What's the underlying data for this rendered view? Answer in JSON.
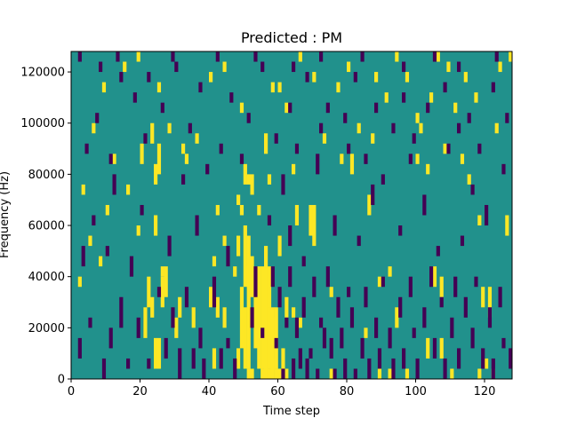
{
  "chart_data": {
    "type": "heatmap",
    "title": "Predicted : PM",
    "xlabel": "Time step",
    "ylabel": "Frequency (Hz)",
    "xlim": [
      0,
      128
    ],
    "ylim": [
      0,
      128000
    ],
    "x_ticks": [
      {
        "value": 0,
        "label": "0"
      },
      {
        "value": 20,
        "label": "20"
      },
      {
        "value": 40,
        "label": "40"
      },
      {
        "value": 60,
        "label": "60"
      },
      {
        "value": 80,
        "label": "80"
      },
      {
        "value": 100,
        "label": "100"
      },
      {
        "value": 120,
        "label": "120"
      }
    ],
    "y_ticks": [
      {
        "value": 0,
        "label": "0"
      },
      {
        "value": 20000,
        "label": "20000"
      },
      {
        "value": 40000,
        "label": "40000"
      },
      {
        "value": 60000,
        "label": "60000"
      },
      {
        "value": 80000,
        "label": "80000"
      },
      {
        "value": 100000,
        "label": "100000"
      },
      {
        "value": 120000,
        "label": "120000"
      }
    ],
    "grid": false,
    "colormap": "viridis",
    "colors": {
      "low": "#440154",
      "mid": "#21918c",
      "high": "#fde725"
    },
    "background_value": 0,
    "bin_height_hz": 4000,
    "cells_high": [
      [
        51,
        0,
        1
      ],
      [
        52,
        0,
        1
      ],
      [
        55,
        0,
        1
      ],
      [
        56,
        0,
        2
      ],
      [
        57,
        0,
        1
      ],
      [
        58,
        0,
        2
      ],
      [
        59,
        0,
        1
      ],
      [
        60,
        0,
        1
      ],
      [
        62,
        0,
        1
      ],
      [
        75,
        0,
        1
      ],
      [
        89,
        0,
        1
      ],
      [
        92,
        0,
        1
      ],
      [
        97,
        0,
        1
      ],
      [
        110,
        0,
        1
      ],
      [
        118,
        0,
        1
      ],
      [
        122,
        0,
        1
      ],
      [
        24,
        1,
        3
      ],
      [
        25,
        1,
        3
      ],
      [
        41,
        1,
        2
      ],
      [
        48,
        1,
        2
      ],
      [
        50,
        1,
        6
      ],
      [
        51,
        1,
        10
      ],
      [
        54,
        1,
        10
      ],
      [
        55,
        1,
        10
      ],
      [
        56,
        1,
        12
      ],
      [
        57,
        1,
        10
      ],
      [
        58,
        1,
        6
      ],
      [
        59,
        1,
        6
      ],
      [
        61,
        1,
        2
      ],
      [
        103,
        2,
        2
      ],
      [
        107,
        2,
        2
      ],
      [
        120,
        1,
        1
      ],
      [
        21,
        4,
        3
      ],
      [
        30,
        4,
        2
      ],
      [
        49,
        3,
        6
      ],
      [
        50,
        9,
        6
      ],
      [
        51,
        9,
        5
      ],
      [
        52,
        8,
        4
      ],
      [
        53,
        3,
        6
      ],
      [
        23,
        6,
        2
      ],
      [
        22,
        7,
        3
      ],
      [
        26,
        7,
        3
      ],
      [
        27,
        8,
        3
      ],
      [
        31,
        6,
        2
      ],
      [
        35,
        5,
        2
      ],
      [
        40,
        7,
        2
      ],
      [
        42,
        6,
        2
      ],
      [
        44,
        5,
        2
      ],
      [
        48,
        12,
        2
      ],
      [
        50,
        19,
        2
      ],
      [
        51,
        19,
        1
      ],
      [
        57,
        7,
        3
      ],
      [
        58,
        4,
        2
      ],
      [
        62,
        6,
        2
      ],
      [
        64,
        6,
        1
      ],
      [
        66,
        5,
        1
      ],
      [
        75,
        8,
        1
      ],
      [
        85,
        4,
        1
      ],
      [
        94,
        5,
        2
      ],
      [
        105,
        9,
        2
      ],
      [
        107,
        8,
        2
      ],
      [
        119,
        7,
        2
      ],
      [
        121,
        6,
        1
      ],
      [
        20,
        21,
        2
      ],
      [
        23,
        23,
        2
      ],
      [
        25,
        20,
        3
      ],
      [
        24,
        14,
        2
      ],
      [
        26,
        10,
        1
      ],
      [
        33,
        21,
        1
      ],
      [
        41,
        11,
        1
      ],
      [
        44,
        13,
        1
      ],
      [
        47,
        10,
        1
      ],
      [
        49,
        16,
        1
      ],
      [
        52,
        18,
        2
      ],
      [
        56,
        22,
        2
      ],
      [
        60,
        12,
        2
      ],
      [
        65,
        15,
        2
      ],
      [
        69,
        14,
        3
      ],
      [
        70,
        13,
        4
      ],
      [
        81,
        20,
        2
      ],
      [
        86,
        16,
        2
      ],
      [
        89,
        9,
        1
      ],
      [
        92,
        10,
        1
      ],
      [
        100,
        21,
        1
      ],
      [
        108,
        22,
        1
      ],
      [
        113,
        21,
        1
      ],
      [
        118,
        15,
        1
      ],
      [
        121,
        7,
        2
      ],
      [
        126,
        14,
        2
      ],
      [
        5,
        13,
        1
      ],
      [
        8,
        11,
        1
      ],
      [
        2,
        9,
        1
      ],
      [
        10,
        16,
        1
      ],
      [
        12,
        21,
        1
      ],
      [
        16,
        18,
        1
      ],
      [
        19,
        14,
        1
      ],
      [
        24,
        19,
        2
      ],
      [
        28,
        24,
        1
      ],
      [
        32,
        22,
        1
      ],
      [
        42,
        16,
        1
      ],
      [
        48,
        17,
        1
      ],
      [
        54,
        16,
        1
      ],
      [
        57,
        19,
        1
      ],
      [
        64,
        20,
        1
      ],
      [
        73,
        23,
        1
      ],
      [
        78,
        21,
        1
      ],
      [
        83,
        24,
        1
      ],
      [
        87,
        23,
        1
      ],
      [
        91,
        27,
        1
      ],
      [
        97,
        29,
        1
      ],
      [
        100,
        25,
        1
      ],
      [
        103,
        20,
        1
      ],
      [
        106,
        31,
        1
      ],
      [
        111,
        26,
        1
      ],
      [
        115,
        19,
        1
      ],
      [
        123,
        24,
        1
      ],
      [
        3,
        18,
        1
      ],
      [
        6,
        24,
        1
      ],
      [
        9,
        28,
        1
      ],
      [
        15,
        30,
        1
      ],
      [
        19,
        31,
        1
      ],
      [
        25,
        28,
        1
      ],
      [
        36,
        23,
        1
      ],
      [
        40,
        29,
        1
      ],
      [
        44,
        30,
        1
      ],
      [
        49,
        26,
        1
      ],
      [
        58,
        28,
        1
      ],
      [
        60,
        28,
        1
      ],
      [
        62,
        26,
        1
      ],
      [
        66,
        31,
        1
      ],
      [
        70,
        29,
        1
      ],
      [
        77,
        28,
        1
      ],
      [
        80,
        30,
        1
      ],
      [
        88,
        29,
        1
      ],
      [
        94,
        31,
        1
      ],
      [
        101,
        24,
        1
      ],
      [
        104,
        27,
        1
      ],
      [
        109,
        30,
        1
      ],
      [
        114,
        29,
        1
      ],
      [
        117,
        27,
        1
      ],
      [
        124,
        30,
        1
      ],
      [
        127,
        31,
        1
      ]
    ],
    "cells_low": [
      [
        2,
        2,
        2
      ],
      [
        5,
        5,
        1
      ],
      [
        9,
        0,
        2
      ],
      [
        11,
        3,
        2
      ],
      [
        14,
        5,
        3
      ],
      [
        16,
        1,
        1
      ],
      [
        19,
        4,
        2
      ],
      [
        22,
        1,
        1
      ],
      [
        25,
        8,
        1
      ],
      [
        27,
        2,
        2
      ],
      [
        29,
        5,
        2
      ],
      [
        31,
        0,
        3
      ],
      [
        33,
        7,
        2
      ],
      [
        35,
        1,
        2
      ],
      [
        37,
        3,
        2
      ],
      [
        38,
        0,
        2
      ],
      [
        41,
        7,
        3
      ],
      [
        43,
        1,
        2
      ],
      [
        45,
        3,
        1
      ],
      [
        47,
        0,
        2
      ],
      [
        52,
        5,
        2
      ],
      [
        53,
        8,
        3
      ],
      [
        55,
        4,
        1
      ],
      [
        58,
        9,
        2
      ],
      [
        59,
        3,
        1
      ],
      [
        60,
        7,
        2
      ],
      [
        61,
        0,
        1
      ],
      [
        62,
        5,
        1
      ],
      [
        63,
        9,
        2
      ],
      [
        64,
        0,
        2
      ],
      [
        65,
        4,
        2
      ],
      [
        66,
        1,
        2
      ],
      [
        67,
        6,
        2
      ],
      [
        68,
        0,
        2
      ],
      [
        69,
        2,
        1
      ],
      [
        70,
        8,
        2
      ],
      [
        71,
        0,
        1
      ],
      [
        72,
        5,
        1
      ],
      [
        73,
        3,
        2
      ],
      [
        74,
        9,
        2
      ],
      [
        75,
        2,
        2
      ],
      [
        76,
        0,
        1
      ],
      [
        77,
        6,
        2
      ],
      [
        78,
        3,
        2
      ],
      [
        79,
        0,
        2
      ],
      [
        80,
        8,
        1
      ],
      [
        81,
        5,
        2
      ],
      [
        82,
        0,
        1
      ],
      [
        84,
        2,
        2
      ],
      [
        85,
        7,
        2
      ],
      [
        86,
        0,
        2
      ],
      [
        88,
        4,
        2
      ],
      [
        89,
        1,
        2
      ],
      [
        90,
        9,
        1
      ],
      [
        92,
        3,
        2
      ],
      [
        93,
        0,
        2
      ],
      [
        95,
        6,
        2
      ],
      [
        96,
        1,
        2
      ],
      [
        98,
        8,
        2
      ],
      [
        99,
        4,
        1
      ],
      [
        100,
        0,
        2
      ],
      [
        102,
        5,
        2
      ],
      [
        104,
        9,
        2
      ],
      [
        105,
        2,
        2
      ],
      [
        107,
        7,
        1
      ],
      [
        108,
        0,
        2
      ],
      [
        110,
        4,
        2
      ],
      [
        111,
        8,
        2
      ],
      [
        112,
        1,
        2
      ],
      [
        114,
        6,
        2
      ],
      [
        116,
        3,
        2
      ],
      [
        117,
        9,
        1
      ],
      [
        119,
        1,
        2
      ],
      [
        121,
        5,
        2
      ],
      [
        122,
        0,
        2
      ],
      [
        124,
        7,
        2
      ],
      [
        125,
        3,
        1
      ],
      [
        127,
        1,
        2
      ],
      [
        3,
        11,
        2
      ],
      [
        6,
        15,
        1
      ],
      [
        10,
        12,
        1
      ],
      [
        12,
        18,
        2
      ],
      [
        17,
        10,
        2
      ],
      [
        20,
        16,
        1
      ],
      [
        28,
        12,
        2
      ],
      [
        32,
        19,
        1
      ],
      [
        36,
        14,
        2
      ],
      [
        39,
        20,
        1
      ],
      [
        45,
        11,
        2
      ],
      [
        49,
        21,
        1
      ],
      [
        57,
        15,
        1
      ],
      [
        61,
        18,
        2
      ],
      [
        63,
        13,
        2
      ],
      [
        67,
        11,
        1
      ],
      [
        71,
        20,
        2
      ],
      [
        76,
        14,
        2
      ],
      [
        80,
        22,
        1
      ],
      [
        83,
        13,
        1
      ],
      [
        87,
        17,
        2
      ],
      [
        90,
        19,
        1
      ],
      [
        95,
        14,
        1
      ],
      [
        98,
        21,
        1
      ],
      [
        102,
        16,
        2
      ],
      [
        106,
        12,
        1
      ],
      [
        109,
        22,
        1
      ],
      [
        113,
        13,
        1
      ],
      [
        116,
        18,
        1
      ],
      [
        120,
        15,
        2
      ],
      [
        125,
        20,
        1
      ],
      [
        4,
        22,
        1
      ],
      [
        7,
        25,
        1
      ],
      [
        11,
        21,
        1
      ],
      [
        14,
        29,
        1
      ],
      [
        18,
        27,
        1
      ],
      [
        21,
        23,
        1
      ],
      [
        26,
        26,
        1
      ],
      [
        30,
        30,
        1
      ],
      [
        34,
        24,
        1
      ],
      [
        37,
        28,
        1
      ],
      [
        43,
        22,
        1
      ],
      [
        46,
        27,
        1
      ],
      [
        51,
        25,
        1
      ],
      [
        55,
        30,
        1
      ],
      [
        59,
        23,
        1
      ],
      [
        63,
        26,
        1
      ],
      [
        65,
        22,
        1
      ],
      [
        68,
        29,
        1
      ],
      [
        72,
        24,
        1
      ],
      [
        74,
        26,
        1
      ],
      [
        79,
        25,
        1
      ],
      [
        82,
        29,
        1
      ],
      [
        85,
        21,
        1
      ],
      [
        88,
        26,
        1
      ],
      [
        93,
        24,
        1
      ],
      [
        96,
        30,
        1
      ],
      [
        99,
        23,
        1
      ],
      [
        103,
        26,
        1
      ],
      [
        108,
        28,
        1
      ],
      [
        112,
        24,
        1
      ],
      [
        115,
        25,
        1
      ],
      [
        118,
        22,
        1
      ],
      [
        122,
        28,
        1
      ],
      [
        126,
        25,
        1
      ],
      [
        2,
        31,
        1
      ],
      [
        8,
        30,
        1
      ],
      [
        13,
        31,
        1
      ],
      [
        22,
        29,
        1
      ],
      [
        29,
        31,
        1
      ],
      [
        42,
        31,
        1
      ],
      [
        53,
        31,
        1
      ],
      [
        64,
        30,
        1
      ],
      [
        72,
        31,
        1
      ],
      [
        84,
        31,
        1
      ],
      [
        96,
        27,
        1
      ],
      [
        105,
        31,
        1
      ],
      [
        112,
        30,
        1
      ],
      [
        123,
        31,
        1
      ]
    ]
  }
}
